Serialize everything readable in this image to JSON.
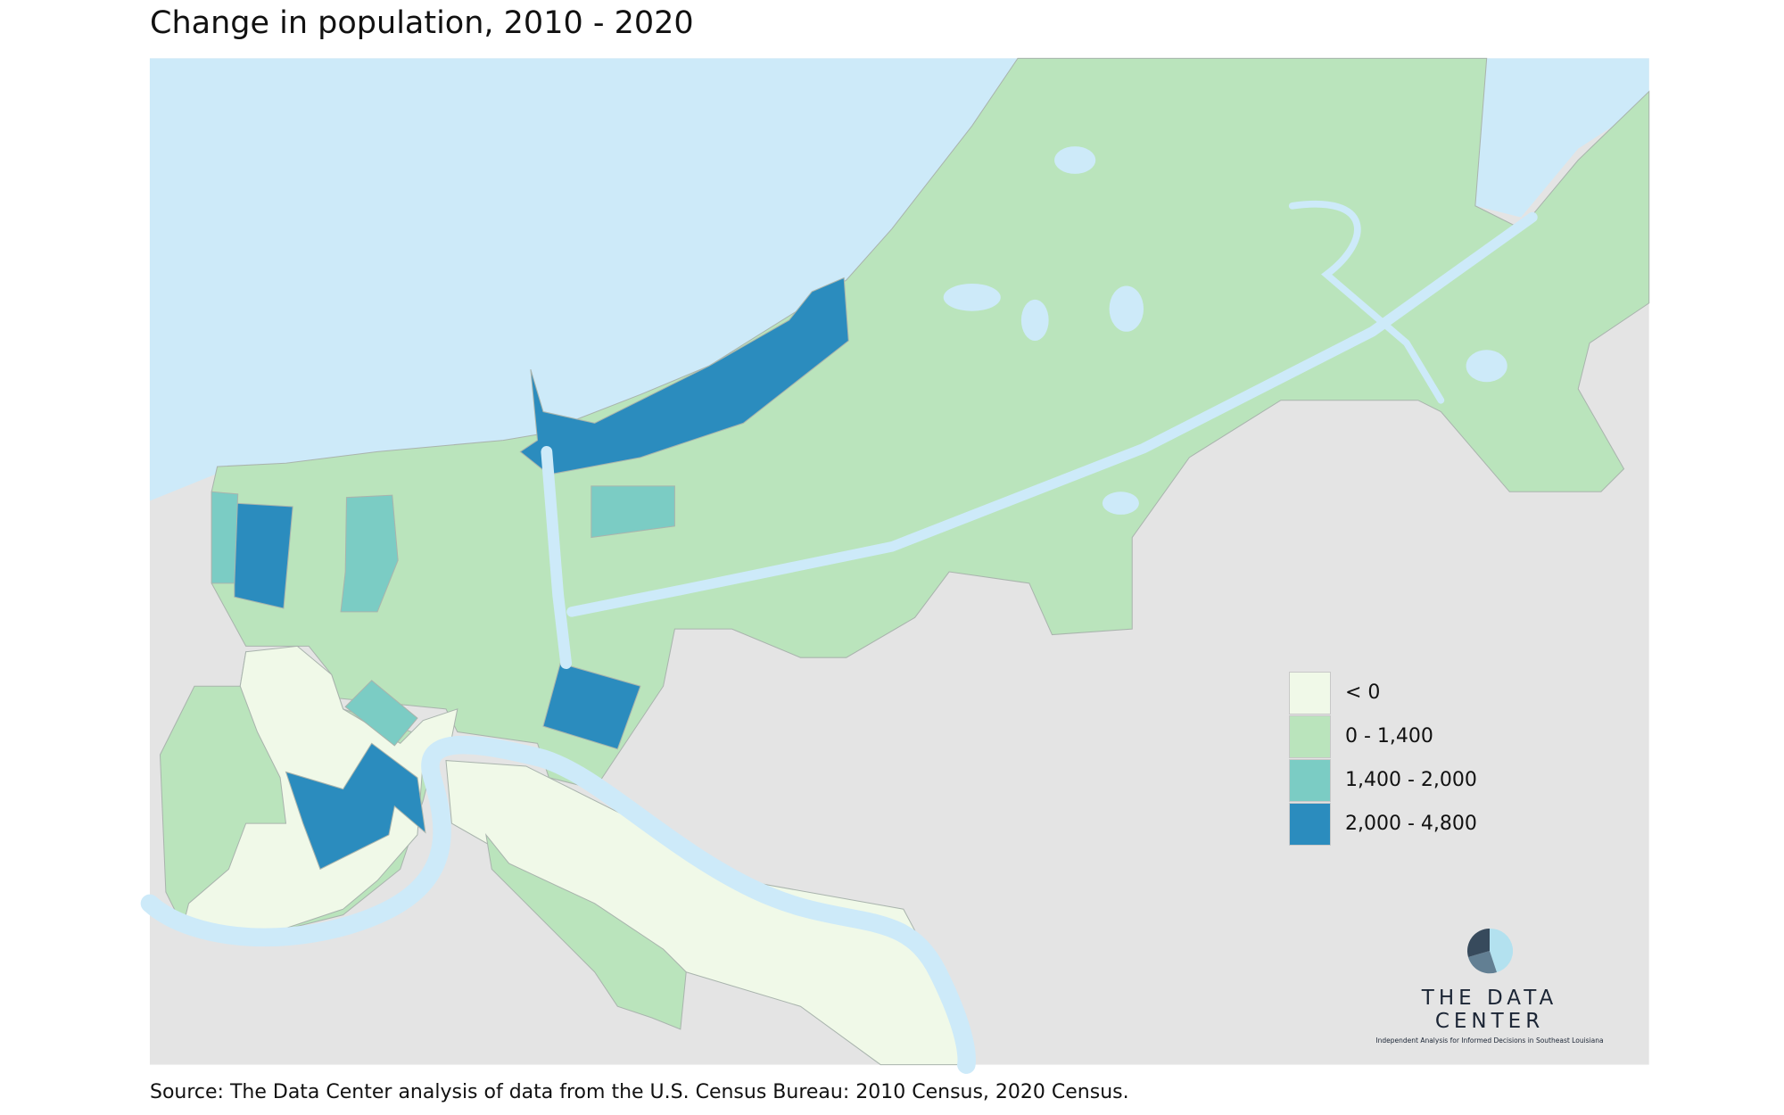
{
  "title": "Change in population, 2010 - 2020",
  "source": "Source: The Data Center analysis of data from the U.S. Census Bureau: 2010 Census, 2020 Census.",
  "colors": {
    "water": "#cdeaf9",
    "land_outside": "#e4e4e4",
    "boundary": "#a9b4ad"
  },
  "legend": [
    {
      "label": "< 0",
      "color": "#f0f9e8"
    },
    {
      "label": "0 - 1,400",
      "color": "#bae4bc"
    },
    {
      "label": "1,400 - 2,000",
      "color": "#7bccc4"
    },
    {
      "label": "2,000 - 4,800",
      "color": "#2b8cbe"
    }
  ],
  "logo": {
    "name": "THE DATA CENTER",
    "tagline": "Independent Analysis for Informed Decisions in Southeast Louisiana"
  }
}
